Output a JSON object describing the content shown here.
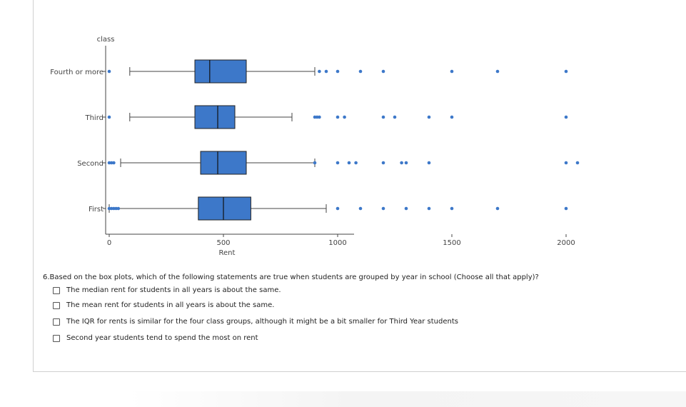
{
  "chart_data": {
    "type": "boxplot",
    "orientation": "horizontal",
    "ylabel": "class",
    "xlabel": "Rent",
    "xlim": [
      -20,
      2150
    ],
    "xticks": [
      0,
      500,
      1000,
      1500,
      2000
    ],
    "tick_labels": [
      "0",
      "500",
      "1000",
      "1500",
      "2000"
    ],
    "categories": [
      "Fourth or more",
      "Third",
      "Second",
      "First"
    ],
    "box_color": "#3d78c9",
    "series": [
      {
        "category": "Fourth or more",
        "whisker_low": 90,
        "q1": 375,
        "median": 440,
        "q3": 600,
        "whisker_high": 900,
        "outliers": [
          0,
          920,
          950,
          1000,
          1100,
          1200,
          1500,
          1700,
          2000
        ]
      },
      {
        "category": "Third",
        "whisker_low": 90,
        "q1": 375,
        "median": 475,
        "q3": 550,
        "whisker_high": 800,
        "outliers": [
          0,
          900,
          910,
          920,
          1000,
          1030,
          1200,
          1250,
          1400,
          1500,
          2000
        ]
      },
      {
        "category": "Second",
        "whisker_low": 50,
        "q1": 400,
        "median": 475,
        "q3": 600,
        "whisker_high": 900,
        "outliers": [
          0,
          10,
          20,
          900,
          1000,
          1050,
          1080,
          1200,
          1280,
          1300,
          1400,
          2000,
          2050
        ]
      },
      {
        "category": "First",
        "whisker_low": 0,
        "q1": 390,
        "median": 500,
        "q3": 620,
        "whisker_high": 950,
        "outliers": [
          0,
          10,
          20,
          30,
          40,
          1000,
          1100,
          1200,
          1300,
          1400,
          1500,
          1700,
          2000
        ]
      }
    ]
  },
  "question": {
    "text": "6.Based on the box plots, which of the following statements are true when students are grouped by year in school (Choose all that apply)?",
    "options": [
      "The median rent for students in all years is about the same.",
      "The mean rent for students in all years is about the same.",
      "The IQR for rents is similar for the four class groups, although it might be a bit smaller for Third Year students",
      "Second year students tend to spend the most on rent"
    ]
  }
}
